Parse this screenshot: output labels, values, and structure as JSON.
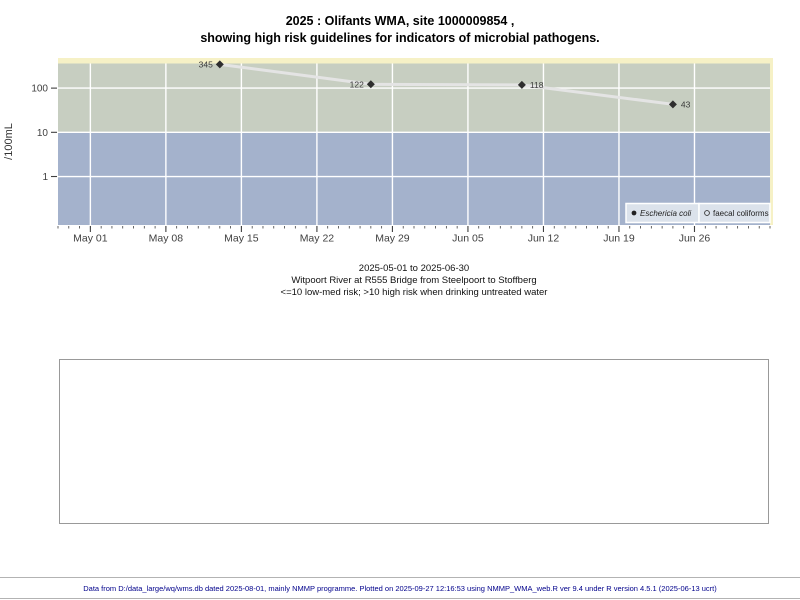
{
  "title": {
    "line1": "2025 : Olifants WMA, site 1000009854 ,",
    "line2": "showing high risk guidelines for indicators of microbial pathogens."
  },
  "chart_data": {
    "type": "line",
    "ylabel": "/100mL",
    "y_scale": "log",
    "ylim": [
      0.08,
      480
    ],
    "xlim": [
      "2025-04-28",
      "2025-07-03"
    ],
    "y_ticks": [
      100,
      10,
      1
    ],
    "x_ticks": [
      {
        "date": "2025-05-01",
        "label": "May 01"
      },
      {
        "date": "2025-05-08",
        "label": "May 08"
      },
      {
        "date": "2025-05-15",
        "label": "May 15"
      },
      {
        "date": "2025-05-22",
        "label": "May 22"
      },
      {
        "date": "2025-05-29",
        "label": "May 29"
      },
      {
        "date": "2025-06-05",
        "label": "Jun 05"
      },
      {
        "date": "2025-06-12",
        "label": "Jun 12"
      },
      {
        "date": "2025-06-19",
        "label": "Jun 19"
      },
      {
        "date": "2025-06-26",
        "label": "Jun 26"
      }
    ],
    "grid": true,
    "threshold": 10,
    "zones": {
      "high_risk_color": "#c7cec1",
      "low_med_risk_color": "#a4b2cc",
      "extreme_strip_color": "#f6f1c6"
    },
    "series": [
      {
        "name": "Eschericia coli",
        "marker": "filled-diamond",
        "points": [
          {
            "date": "2025-05-13",
            "value": 345,
            "label_side": "left"
          },
          {
            "date": "2025-05-27",
            "value": 122,
            "label_side": "left"
          },
          {
            "date": "2025-06-10",
            "value": 118,
            "label_side": "right"
          },
          {
            "date": "2025-06-24",
            "value": 43,
            "label_side": "right"
          }
        ]
      },
      {
        "name": "faecal coliforms",
        "marker": "open-circle",
        "points": []
      }
    ],
    "legend": {
      "position": "bottom-right",
      "items": [
        {
          "label": "Eschericia coli",
          "marker": "filled-circle",
          "italic": true
        },
        {
          "label": "faecal coliforms",
          "marker": "open-circle",
          "italic": false
        }
      ]
    },
    "colors": {
      "line": "#e4e4e4",
      "point": "#2e2e2e",
      "grid": "#ffffff",
      "axis_text": "#404040",
      "point_label": "#3a3a3a",
      "legend_bg": "#dbe2eb"
    }
  },
  "subtitle": {
    "line1": "2025-05-01 to 2025-06-30",
    "line2": "Witpoort River at R555 Bridge from Steelpoort to Stoffberg",
    "line3": "<=10 low-med risk; >10 high risk when drinking untreated water"
  },
  "footer": {
    "text": "Data from D:/data_large/wq/wms.db dated 2025-08-01, mainly NMMP programme. Plotted on 2025-09-27 12:16:53 using NMMP_WMA_web.R ver 9.4 under R version 4.5.1 (2025-06-13 ucrt)"
  }
}
